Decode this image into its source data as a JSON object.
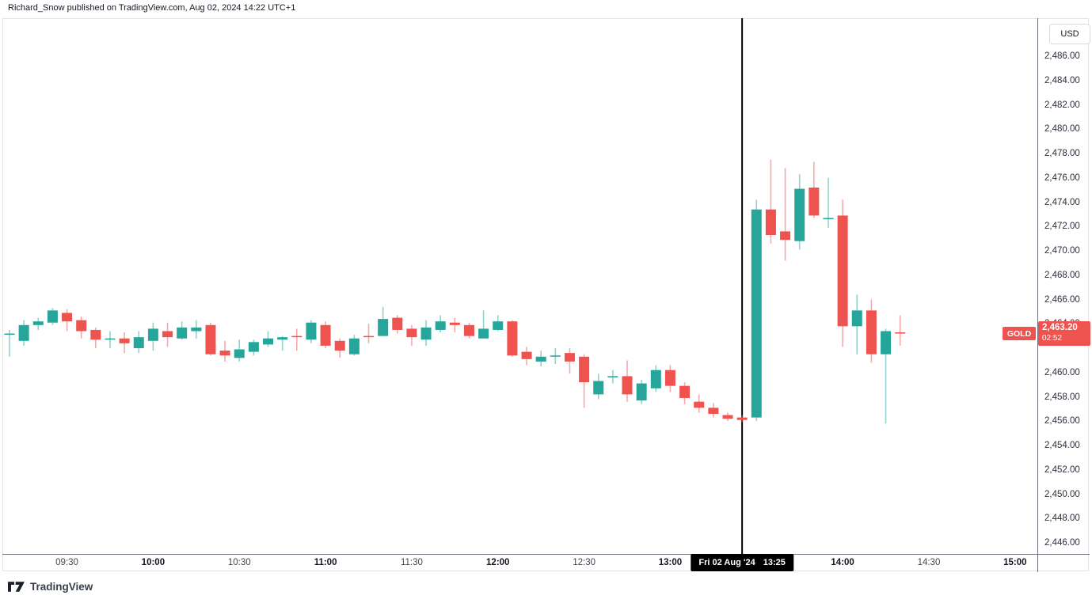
{
  "header": {
    "attribution": "Richard_Snow published on TradingView.com, Aug 02, 2024 14:22 UTC+1"
  },
  "price_scale": {
    "currency_button": "USD",
    "ticks": [
      {
        "label": "2,486.00",
        "price": 2486
      },
      {
        "label": "2,484.00",
        "price": 2484
      },
      {
        "label": "2,482.00",
        "price": 2482
      },
      {
        "label": "2,480.00",
        "price": 2480
      },
      {
        "label": "2,478.00",
        "price": 2478
      },
      {
        "label": "2,476.00",
        "price": 2476
      },
      {
        "label": "2,474.00",
        "price": 2474
      },
      {
        "label": "2,472.00",
        "price": 2472
      },
      {
        "label": "2,470.00",
        "price": 2470
      },
      {
        "label": "2,468.00",
        "price": 2468
      },
      {
        "label": "2,466.00",
        "price": 2466
      },
      {
        "label": "2,464.00",
        "price": 2464
      },
      {
        "label": "2,460.00",
        "price": 2460
      },
      {
        "label": "2,458.00",
        "price": 2458
      },
      {
        "label": "2,456.00",
        "price": 2456
      },
      {
        "label": "2,454.00",
        "price": 2454
      },
      {
        "label": "2,452.00",
        "price": 2452
      },
      {
        "label": "2,450.00",
        "price": 2450
      },
      {
        "label": "2,448.00",
        "price": 2448
      },
      {
        "label": "2,446.00",
        "price": 2446
      }
    ]
  },
  "time_scale": {
    "ticks": [
      {
        "label": "09:30",
        "offset_min": 20,
        "bold": false
      },
      {
        "label": "10:00",
        "offset_min": 50,
        "bold": true
      },
      {
        "label": "10:30",
        "offset_min": 80,
        "bold": false
      },
      {
        "label": "11:00",
        "offset_min": 110,
        "bold": true
      },
      {
        "label": "11:30",
        "offset_min": 140,
        "bold": false
      },
      {
        "label": "12:00",
        "offset_min": 170,
        "bold": true
      },
      {
        "label": "12:30",
        "offset_min": 200,
        "bold": false
      },
      {
        "label": "13:00",
        "offset_min": 230,
        "bold": true
      },
      {
        "label": "14:00",
        "offset_min": 290,
        "bold": true
      },
      {
        "label": "14:30",
        "offset_min": 320,
        "bold": false
      },
      {
        "label": "15:00",
        "offset_min": 350,
        "bold": true
      }
    ]
  },
  "last_price_label": {
    "symbol": "GOLD",
    "price_text": "2,463.20",
    "countdown": "02:52",
    "badge_color": "#ef5350"
  },
  "marker": {
    "date_label": "Fri 02 Aug '24",
    "time_label": "13:25",
    "line_color": "#000000"
  },
  "footer": {
    "brand": "TradingView"
  },
  "chart_data": {
    "type": "candlestick",
    "title": "GOLD intraday 5-minute candlestick chart",
    "symbol": "GOLD",
    "currency": "USD",
    "interval_minutes": 5,
    "up_color": "#26a69a",
    "down_color": "#ef5350",
    "grid": false,
    "y_axis": {
      "label_min": 2446,
      "label_max": 2486,
      "tick_step": 2,
      "visible_range": [
        2445.1,
        2489.1
      ]
    },
    "x_axis": {
      "start": "09:10",
      "end": "15:00",
      "tick_step_min": 30
    },
    "last_price": 2463.2,
    "vertical_marker_time": "13:25",
    "candles": [
      {
        "t": "09:10",
        "o": 2463.1,
        "h": 2463.5,
        "l": 2461.3,
        "c": 2463.2
      },
      {
        "t": "09:15",
        "o": 2462.6,
        "h": 2464.3,
        "l": 2462.2,
        "c": 2463.9
      },
      {
        "t": "09:20",
        "o": 2463.9,
        "h": 2464.5,
        "l": 2463.5,
        "c": 2464.2
      },
      {
        "t": "09:25",
        "o": 2464.1,
        "h": 2465.3,
        "l": 2463.9,
        "c": 2465.1
      },
      {
        "t": "09:30",
        "o": 2464.9,
        "h": 2465.2,
        "l": 2463.4,
        "c": 2464.2
      },
      {
        "t": "09:35",
        "o": 2464.3,
        "h": 2464.6,
        "l": 2462.8,
        "c": 2463.4
      },
      {
        "t": "09:40",
        "o": 2463.5,
        "h": 2463.7,
        "l": 2462.0,
        "c": 2462.7
      },
      {
        "t": "09:45",
        "o": 2462.7,
        "h": 2463.4,
        "l": 2462.0,
        "c": 2462.8
      },
      {
        "t": "09:50",
        "o": 2462.8,
        "h": 2463.3,
        "l": 2461.6,
        "c": 2462.4
      },
      {
        "t": "09:55",
        "o": 2462.0,
        "h": 2463.4,
        "l": 2461.6,
        "c": 2462.9
      },
      {
        "t": "10:00",
        "o": 2462.6,
        "h": 2464.1,
        "l": 2461.8,
        "c": 2463.6
      },
      {
        "t": "10:05",
        "o": 2463.4,
        "h": 2464.1,
        "l": 2462.1,
        "c": 2462.9
      },
      {
        "t": "10:10",
        "o": 2462.8,
        "h": 2464.2,
        "l": 2462.7,
        "c": 2463.7
      },
      {
        "t": "10:15",
        "o": 2463.4,
        "h": 2464.3,
        "l": 2462.8,
        "c": 2463.7
      },
      {
        "t": "10:20",
        "o": 2463.9,
        "h": 2464.1,
        "l": 2461.4,
        "c": 2461.5
      },
      {
        "t": "10:25",
        "o": 2461.8,
        "h": 2462.6,
        "l": 2460.9,
        "c": 2461.4
      },
      {
        "t": "10:30",
        "o": 2461.2,
        "h": 2462.7,
        "l": 2460.9,
        "c": 2461.9
      },
      {
        "t": "10:35",
        "o": 2461.7,
        "h": 2462.7,
        "l": 2461.4,
        "c": 2462.5
      },
      {
        "t": "10:40",
        "o": 2462.3,
        "h": 2463.4,
        "l": 2462.1,
        "c": 2462.8
      },
      {
        "t": "10:45",
        "o": 2462.7,
        "h": 2463.0,
        "l": 2461.8,
        "c": 2462.9
      },
      {
        "t": "10:50",
        "o": 2463.0,
        "h": 2463.6,
        "l": 2461.8,
        "c": 2462.9
      },
      {
        "t": "10:55",
        "o": 2462.7,
        "h": 2464.3,
        "l": 2462.4,
        "c": 2464.1
      },
      {
        "t": "11:00",
        "o": 2463.9,
        "h": 2464.2,
        "l": 2462.0,
        "c": 2462.2
      },
      {
        "t": "11:05",
        "o": 2462.6,
        "h": 2462.8,
        "l": 2461.2,
        "c": 2461.8
      },
      {
        "t": "11:10",
        "o": 2461.5,
        "h": 2463.1,
        "l": 2461.4,
        "c": 2462.8
      },
      {
        "t": "11:15",
        "o": 2463.0,
        "h": 2464.0,
        "l": 2462.4,
        "c": 2462.9
      },
      {
        "t": "11:20",
        "o": 2463.0,
        "h": 2465.4,
        "l": 2463.0,
        "c": 2464.4
      },
      {
        "t": "11:25",
        "o": 2464.5,
        "h": 2464.7,
        "l": 2463.2,
        "c": 2463.5
      },
      {
        "t": "11:30",
        "o": 2463.6,
        "h": 2463.9,
        "l": 2462.2,
        "c": 2462.9
      },
      {
        "t": "11:35",
        "o": 2462.7,
        "h": 2464.3,
        "l": 2462.2,
        "c": 2463.7
      },
      {
        "t": "11:40",
        "o": 2463.5,
        "h": 2464.7,
        "l": 2463.3,
        "c": 2464.2
      },
      {
        "t": "11:45",
        "o": 2464.1,
        "h": 2464.5,
        "l": 2463.3,
        "c": 2463.9
      },
      {
        "t": "11:50",
        "o": 2463.9,
        "h": 2464.1,
        "l": 2462.8,
        "c": 2463.0
      },
      {
        "t": "11:55",
        "o": 2462.8,
        "h": 2465.1,
        "l": 2462.8,
        "c": 2463.6
      },
      {
        "t": "12:00",
        "o": 2463.5,
        "h": 2464.7,
        "l": 2463.4,
        "c": 2464.2
      },
      {
        "t": "12:05",
        "o": 2464.2,
        "h": 2464.3,
        "l": 2461.3,
        "c": 2461.4
      },
      {
        "t": "12:10",
        "o": 2461.7,
        "h": 2462.1,
        "l": 2460.6,
        "c": 2461.1
      },
      {
        "t": "12:15",
        "o": 2460.9,
        "h": 2461.8,
        "l": 2460.5,
        "c": 2461.3
      },
      {
        "t": "12:20",
        "o": 2461.3,
        "h": 2462.0,
        "l": 2460.7,
        "c": 2461.4
      },
      {
        "t": "12:25",
        "o": 2461.6,
        "h": 2462.0,
        "l": 2459.9,
        "c": 2460.9
      },
      {
        "t": "12:30",
        "o": 2461.3,
        "h": 2461.5,
        "l": 2457.1,
        "c": 2459.2
      },
      {
        "t": "12:35",
        "o": 2458.2,
        "h": 2459.9,
        "l": 2457.8,
        "c": 2459.3
      },
      {
        "t": "12:40",
        "o": 2459.6,
        "h": 2460.2,
        "l": 2459.1,
        "c": 2459.7
      },
      {
        "t": "12:45",
        "o": 2459.7,
        "h": 2461.0,
        "l": 2457.6,
        "c": 2458.2
      },
      {
        "t": "12:50",
        "o": 2457.7,
        "h": 2459.4,
        "l": 2457.4,
        "c": 2459.1
      },
      {
        "t": "12:55",
        "o": 2458.7,
        "h": 2460.6,
        "l": 2458.4,
        "c": 2460.2
      },
      {
        "t": "13:00",
        "o": 2460.2,
        "h": 2460.6,
        "l": 2458.4,
        "c": 2458.9
      },
      {
        "t": "13:05",
        "o": 2458.9,
        "h": 2459.2,
        "l": 2457.4,
        "c": 2457.9
      },
      {
        "t": "13:10",
        "o": 2457.6,
        "h": 2458.2,
        "l": 2456.7,
        "c": 2457.1
      },
      {
        "t": "13:15",
        "o": 2457.1,
        "h": 2457.5,
        "l": 2456.3,
        "c": 2456.6
      },
      {
        "t": "13:20",
        "o": 2456.5,
        "h": 2456.7,
        "l": 2456.0,
        "c": 2456.2
      },
      {
        "t": "13:25",
        "o": 2456.3,
        "h": 2456.5,
        "l": 2455.9,
        "c": 2456.1
      },
      {
        "t": "13:30",
        "o": 2456.3,
        "h": 2474.2,
        "l": 2456.0,
        "c": 2473.4
      },
      {
        "t": "13:35",
        "o": 2473.4,
        "h": 2477.5,
        "l": 2470.6,
        "c": 2471.3
      },
      {
        "t": "13:40",
        "o": 2471.6,
        "h": 2476.8,
        "l": 2469.2,
        "c": 2470.9
      },
      {
        "t": "13:45",
        "o": 2470.8,
        "h": 2476.3,
        "l": 2470.1,
        "c": 2475.1
      },
      {
        "t": "13:50",
        "o": 2475.2,
        "h": 2477.3,
        "l": 2472.7,
        "c": 2472.9
      },
      {
        "t": "13:55",
        "o": 2472.6,
        "h": 2476.0,
        "l": 2471.9,
        "c": 2472.7
      },
      {
        "t": "14:00",
        "o": 2472.9,
        "h": 2474.2,
        "l": 2462.1,
        "c": 2463.8
      },
      {
        "t": "14:05",
        "o": 2463.8,
        "h": 2466.4,
        "l": 2461.5,
        "c": 2465.1
      },
      {
        "t": "14:10",
        "o": 2465.1,
        "h": 2466.0,
        "l": 2460.8,
        "c": 2461.5
      },
      {
        "t": "14:15",
        "o": 2461.5,
        "h": 2463.6,
        "l": 2455.8,
        "c": 2463.4
      },
      {
        "t": "14:20",
        "o": 2463.3,
        "h": 2464.7,
        "l": 2462.2,
        "c": 2463.2
      }
    ]
  }
}
